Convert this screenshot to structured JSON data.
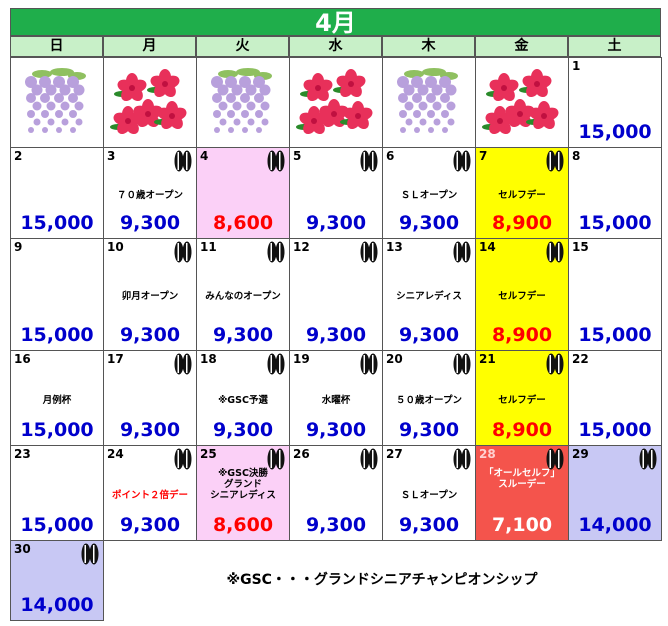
{
  "header": {
    "title": "4月"
  },
  "weekdays": [
    "日",
    "月",
    "火",
    "水",
    "木",
    "金",
    "土"
  ],
  "weeks": [
    [
      null,
      null,
      null,
      null,
      null,
      null,
      {
        "day": "1",
        "price": "15,000",
        "price_color": "#0000cc"
      }
    ],
    [
      {
        "day": "2",
        "price": "15,000",
        "price_color": "#0000cc"
      },
      {
        "day": "3",
        "event": "７０歳オープン",
        "price": "9,300",
        "price_color": "#0000cc",
        "restaurant": true
      },
      {
        "day": "4",
        "price": "8,600",
        "price_color": "#ff0000",
        "color": "#fbd0f7",
        "restaurant": true
      },
      {
        "day": "5",
        "price": "9,300",
        "price_color": "#0000cc",
        "restaurant": true
      },
      {
        "day": "6",
        "event": "ＳＬオープン",
        "price": "9,300",
        "price_color": "#0000cc",
        "restaurant": true
      },
      {
        "day": "7",
        "event": "セルフデー",
        "price": "8,900",
        "price_color": "#ff0000",
        "color": "#ffff00",
        "restaurant": true
      },
      {
        "day": "8",
        "price": "15,000",
        "price_color": "#0000cc"
      }
    ],
    [
      {
        "day": "9",
        "price": "15,000",
        "price_color": "#0000cc"
      },
      {
        "day": "10",
        "event": "卯月オープン",
        "price": "9,300",
        "price_color": "#0000cc",
        "restaurant": true
      },
      {
        "day": "11",
        "event": "みんなのオープン",
        "price": "9,300",
        "price_color": "#0000cc",
        "restaurant": true
      },
      {
        "day": "12",
        "price": "9,300",
        "price_color": "#0000cc",
        "restaurant": true
      },
      {
        "day": "13",
        "event": "シニアレディス",
        "price": "9,300",
        "price_color": "#0000cc",
        "restaurant": true
      },
      {
        "day": "14",
        "event": "セルフデー",
        "price": "8,900",
        "price_color": "#ff0000",
        "color": "#ffff00",
        "restaurant": true
      },
      {
        "day": "15",
        "price": "15,000",
        "price_color": "#0000cc"
      }
    ],
    [
      {
        "day": "16",
        "event": "月例杯",
        "price": "15,000",
        "price_color": "#0000cc"
      },
      {
        "day": "17",
        "price": "9,300",
        "price_color": "#0000cc",
        "restaurant": true
      },
      {
        "day": "18",
        "event": "※GSC予選",
        "price": "9,300",
        "price_color": "#0000cc",
        "restaurant": true
      },
      {
        "day": "19",
        "event": "水曜杯",
        "price": "9,300",
        "price_color": "#0000cc",
        "restaurant": true
      },
      {
        "day": "20",
        "event": "５０歳オープン",
        "price": "9,300",
        "price_color": "#0000cc",
        "restaurant": true
      },
      {
        "day": "21",
        "event": "セルフデー",
        "price": "8,900",
        "price_color": "#ff0000",
        "color": "#ffff00",
        "restaurant": true
      },
      {
        "day": "22",
        "price": "15,000",
        "price_color": "#0000cc"
      }
    ],
    [
      {
        "day": "23",
        "price": "15,000",
        "price_color": "#0000cc"
      },
      {
        "day": "24",
        "event": "ポイント２倍デー",
        "event_color": "#ff0000",
        "price": "9,300",
        "price_color": "#0000cc",
        "restaurant": true
      },
      {
        "day": "25",
        "event": "※GSC決勝\nグランド\nシニアレディス",
        "price": "8,600",
        "price_color": "#ff0000",
        "color": "#fbd0f7",
        "restaurant": true
      },
      {
        "day": "26",
        "price": "9,300",
        "price_color": "#0000cc",
        "restaurant": true
      },
      {
        "day": "27",
        "event": "ＳＬオープン",
        "price": "9,300",
        "price_color": "#0000cc",
        "restaurant": true
      },
      {
        "day": "28",
        "event": "「オールセルフ」\nスルーデー",
        "event_color": "#ffffff",
        "price": "7,100",
        "price_color": "#ffffff",
        "color": "#f4544c",
        "restaurant": true
      },
      {
        "day": "29",
        "price": "14,000",
        "price_color": "#0000cc",
        "color": "#c8c8f4",
        "restaurant": true
      }
    ],
    [
      {
        "day": "30",
        "price": "14,000",
        "price_color": "#0000cc",
        "color": "#c8c8f4",
        "restaurant": true
      }
    ]
  ],
  "note": "※GSC・・・グランドシニアチャンピオンシップ"
}
